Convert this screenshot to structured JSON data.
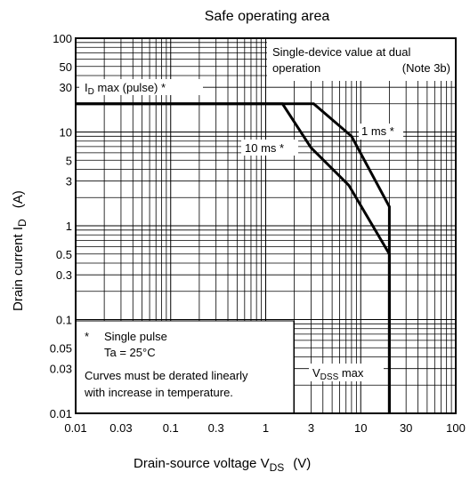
{
  "chart_data": {
    "type": "line",
    "title": "Safe operating area",
    "xlabel": {
      "main": "Drain-source voltage  V",
      "sub": "DS",
      "unit": "(V)"
    },
    "ylabel": {
      "main": "Drain current  I",
      "sub": "D",
      "unit": "(A)"
    },
    "x_scale": "log",
    "y_scale": "log",
    "xlim": [
      0.01,
      100
    ],
    "ylim": [
      0.01,
      100
    ],
    "grid": true,
    "x_ticks": [
      {
        "v": 0.01,
        "label": "0.01"
      },
      {
        "v": 0.03,
        "label": "0.03"
      },
      {
        "v": 0.1,
        "label": "0.1"
      },
      {
        "v": 0.3,
        "label": "0.3"
      },
      {
        "v": 1,
        "label": "1"
      },
      {
        "v": 3,
        "label": "3"
      },
      {
        "v": 10,
        "label": "10"
      },
      {
        "v": 30,
        "label": "30"
      },
      {
        "v": 100,
        "label": "100"
      }
    ],
    "y_ticks": [
      {
        "v": 0.01,
        "label": "0.01"
      },
      {
        "v": 0.03,
        "label": "0.03"
      },
      {
        "v": 0.05,
        "label": "0.05"
      },
      {
        "v": 0.1,
        "label": "0.1"
      },
      {
        "v": 0.3,
        "label": "0.3"
      },
      {
        "v": 0.5,
        "label": "0.5"
      },
      {
        "v": 1,
        "label": "1"
      },
      {
        "v": 3,
        "label": "3"
      },
      {
        "v": 5,
        "label": "5"
      },
      {
        "v": 10,
        "label": "10"
      },
      {
        "v": 30,
        "label": "30"
      },
      {
        "v": 50,
        "label": "50"
      },
      {
        "v": 100,
        "label": "100"
      }
    ],
    "series": [
      {
        "name": "1 ms *",
        "points": [
          [
            0.01,
            20
          ],
          [
            3.2,
            20
          ],
          [
            8,
            9
          ],
          [
            20,
            1.6
          ],
          [
            20,
            0.01
          ]
        ]
      },
      {
        "name": "10 ms *",
        "points": [
          [
            0.01,
            20
          ],
          [
            1.5,
            20
          ],
          [
            3,
            6.8
          ],
          [
            7.5,
            2.7
          ],
          [
            20,
            0.5
          ],
          [
            20,
            0.01
          ]
        ]
      }
    ],
    "annotations": {
      "id_max": {
        "main": "I",
        "sub": "D",
        "rest": " max (pulse) *"
      },
      "vdss_max": {
        "main": "V",
        "sub": "DSS",
        "rest": " max"
      },
      "note_line1": "Single-device value at dual",
      "note_line2": "operation",
      "note_ref": "(Note 3b)",
      "single_pulse": "Single pulse",
      "single_pulse_star": "*",
      "ta": "Ta = 25°C",
      "derate_line1": "Curves must be derated linearly",
      "derate_line2": "with increase in temperature."
    }
  }
}
